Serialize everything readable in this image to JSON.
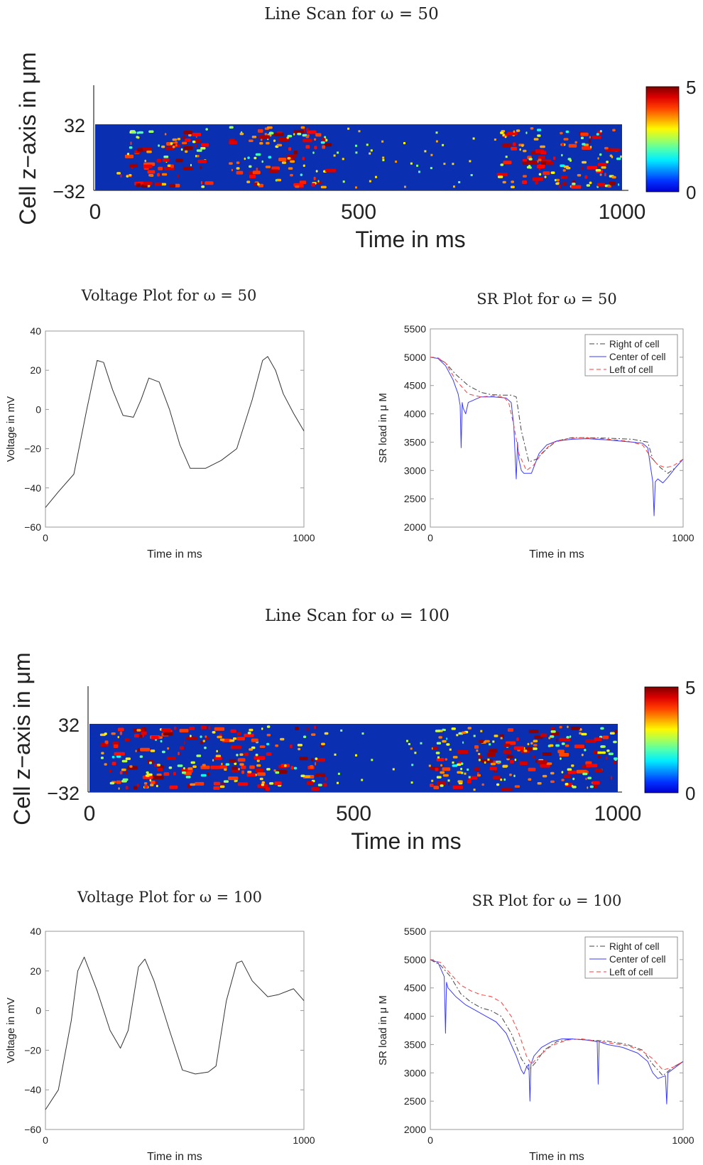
{
  "chart_data": [
    {
      "type": "heatmap",
      "title": "Line Scan for ω = 50",
      "xlabel": "Time in ms",
      "ylabel": "Cell z−axis in μm",
      "xlim": [
        0,
        1000
      ],
      "ylim": [
        -32,
        32
      ],
      "xticks": [
        "0",
        "500",
        "1000"
      ],
      "yticks": [
        "32",
        "−32"
      ],
      "colorbar": {
        "min": 0,
        "max": 5,
        "ticks": [
          "5",
          "0"
        ],
        "colormap": "jet"
      },
      "colors": {
        "background": "#0a2fb0"
      },
      "activity_bands_ms": [
        [
          40,
          210
        ],
        [
          250,
          440
        ],
        [
          760,
          1000
        ]
      ]
    },
    {
      "type": "line",
      "title": "Voltage Plot for ω = 50",
      "xlabel": "Time in ms",
      "ylabel": "Voltage in mV",
      "xlim": [
        0,
        1000
      ],
      "ylim": [
        -60,
        40
      ],
      "xticks": [
        "0",
        "1000"
      ],
      "yticks": [
        "40",
        "20",
        "0",
        "−20",
        "−40",
        "−60"
      ],
      "series": [
        {
          "color": "#333333",
          "x": [
            0,
            50,
            110,
            160,
            200,
            225,
            260,
            300,
            340,
            370,
            400,
            440,
            480,
            520,
            560,
            620,
            680,
            740,
            800,
            840,
            860,
            890,
            920,
            960,
            1000
          ],
          "y": [
            -50,
            -42,
            -33,
            0,
            25,
            24,
            10,
            -3,
            -4,
            5,
            16,
            14,
            0,
            -18,
            -30,
            -30,
            -26,
            -20,
            5,
            25,
            27,
            20,
            8,
            -2,
            -11
          ]
        }
      ]
    },
    {
      "type": "line",
      "title": "SR Plot for ω = 50",
      "xlabel": "Time in ms",
      "ylabel": "SR load in μ M",
      "xlim": [
        0,
        1000
      ],
      "ylim": [
        2000,
        5500
      ],
      "xticks": [
        "0",
        "1000"
      ],
      "yticks": [
        "5500",
        "5000",
        "4500",
        "4000",
        "3500",
        "3000",
        "2500",
        "2000"
      ],
      "legend": {
        "position": "top-right",
        "entries": [
          "Right of cell",
          "Center of cell",
          "Left of cell"
        ]
      },
      "series": [
        {
          "name": "Right of cell",
          "color": "#444444",
          "style": "dashdot",
          "x": [
            0,
            30,
            60,
            100,
            150,
            200,
            240,
            290,
            320,
            340,
            360,
            390,
            420,
            460,
            500,
            560,
            620,
            700,
            800,
            860,
            880,
            910,
            940,
            970,
            1000
          ],
          "y": [
            5000,
            4980,
            4900,
            4700,
            4500,
            4380,
            4340,
            4330,
            4330,
            4300,
            3700,
            3150,
            3200,
            3380,
            3520,
            3580,
            3580,
            3570,
            3550,
            3500,
            3200,
            3050,
            2950,
            3050,
            3200
          ]
        },
        {
          "name": "Center of cell",
          "color": "#3b3bff",
          "style": "solid",
          "x": [
            0,
            30,
            60,
            90,
            110,
            118,
            122,
            126,
            130,
            140,
            150,
            200,
            250,
            300,
            320,
            330,
            335,
            340,
            345,
            350,
            360,
            370,
            400,
            430,
            460,
            500,
            560,
            620,
            700,
            800,
            840,
            860,
            870,
            880,
            885,
            890,
            900,
            920,
            940,
            970,
            1000
          ],
          "y": [
            5000,
            4980,
            4850,
            4600,
            4350,
            4150,
            3400,
            4200,
            4100,
            4000,
            4200,
            4300,
            4300,
            4280,
            4200,
            3800,
            3300,
            2850,
            3500,
            3200,
            3000,
            2950,
            2950,
            3300,
            3450,
            3520,
            3550,
            3560,
            3540,
            3500,
            3480,
            3400,
            3100,
            2800,
            2200,
            2800,
            2850,
            2780,
            2880,
            3050,
            3200
          ]
        },
        {
          "name": "Left of cell",
          "color": "#ff3b3b",
          "style": "dashed",
          "x": [
            0,
            30,
            60,
            100,
            150,
            200,
            250,
            290,
            310,
            330,
            350,
            380,
            410,
            440,
            480,
            540,
            600,
            680,
            780,
            840,
            870,
            900,
            930,
            960,
            1000
          ],
          "y": [
            5000,
            4990,
            4900,
            4600,
            4350,
            4300,
            4320,
            4300,
            4200,
            3800,
            3300,
            3000,
            3100,
            3300,
            3480,
            3560,
            3580,
            3560,
            3520,
            3450,
            3250,
            3100,
            3050,
            3080,
            3200
          ]
        }
      ]
    },
    {
      "type": "heatmap",
      "title": "Line Scan for ω = 100",
      "xlabel": "Time in ms",
      "ylabel": "Cell z−axis in μm",
      "xlim": [
        0,
        1000
      ],
      "ylim": [
        -32,
        32
      ],
      "xticks": [
        "0",
        "500",
        "1000"
      ],
      "yticks": [
        "32",
        "−32"
      ],
      "colorbar": {
        "min": 0,
        "max": 5,
        "ticks": [
          "5",
          "0"
        ],
        "colormap": "jet"
      },
      "colors": {
        "background": "#0a2fb0"
      },
      "activity_bands_ms": [
        [
          20,
          450
        ],
        [
          640,
          1000
        ]
      ]
    },
    {
      "type": "line",
      "title": "Voltage Plot for ω = 100",
      "xlabel": "Time in ms",
      "ylabel": "Voltage in mV",
      "xlim": [
        0,
        1000
      ],
      "ylim": [
        -60,
        40
      ],
      "xticks": [
        "0",
        "1000"
      ],
      "yticks": [
        "40",
        "20",
        "0",
        "−20",
        "−40",
        "−60"
      ],
      "series": [
        {
          "color": "#333333",
          "x": [
            0,
            50,
            100,
            125,
            150,
            200,
            250,
            290,
            320,
            360,
            385,
            420,
            480,
            530,
            580,
            630,
            660,
            700,
            740,
            760,
            800,
            860,
            900,
            960,
            1000
          ],
          "y": [
            -50,
            -40,
            -5,
            20,
            27,
            10,
            -10,
            -19,
            -10,
            22,
            26,
            15,
            -10,
            -30,
            -32,
            -31,
            -28,
            5,
            24,
            25,
            15,
            7,
            8,
            11,
            5
          ]
        }
      ]
    },
    {
      "type": "line",
      "title": "SR Plot for ω = 100",
      "xlabel": "Time in ms",
      "ylabel": "SR load in μ M",
      "xlim": [
        0,
        1000
      ],
      "ylim": [
        2000,
        5500
      ],
      "xticks": [
        "0",
        "1000"
      ],
      "yticks": [
        "5500",
        "5000",
        "4500",
        "4000",
        "3500",
        "3000",
        "2500",
        "2000"
      ],
      "legend": {
        "position": "top-right",
        "entries": [
          "Right of cell",
          "Center of cell",
          "Left of cell"
        ]
      },
      "series": [
        {
          "name": "Right of cell",
          "color": "#444444",
          "style": "dashdot",
          "x": [
            0,
            40,
            80,
            120,
            160,
            200,
            240,
            280,
            320,
            360,
            390,
            420,
            450,
            500,
            560,
            620,
            700,
            780,
            840,
            880,
            920,
            960,
            1000
          ],
          "y": [
            5000,
            4900,
            4700,
            4400,
            4250,
            4150,
            4100,
            4000,
            3700,
            3250,
            3050,
            3200,
            3400,
            3550,
            3600,
            3580,
            3560,
            3500,
            3400,
            3150,
            2950,
            3100,
            3200
          ]
        },
        {
          "name": "Center of cell",
          "color": "#3b3bff",
          "style": "solid",
          "x": [
            0,
            30,
            55,
            60,
            64,
            70,
            100,
            140,
            180,
            220,
            260,
            300,
            340,
            360,
            370,
            380,
            390,
            394,
            398,
            410,
            440,
            480,
            520,
            560,
            620,
            660,
            664,
            668,
            700,
            760,
            820,
            860,
            880,
            900,
            930,
            935,
            940,
            970,
            1000
          ],
          "y": [
            5000,
            4950,
            4700,
            3700,
            4600,
            4500,
            4350,
            4200,
            4100,
            4000,
            3900,
            3700,
            3300,
            3050,
            2980,
            3100,
            3150,
            2500,
            3150,
            3300,
            3450,
            3550,
            3600,
            3600,
            3580,
            3550,
            2800,
            3550,
            3500,
            3450,
            3350,
            3200,
            3000,
            2900,
            2950,
            2450,
            3000,
            3100,
            3200
          ]
        },
        {
          "name": "Left of cell",
          "color": "#ff3b3b",
          "style": "dashed",
          "x": [
            0,
            40,
            80,
            120,
            160,
            200,
            240,
            280,
            320,
            350,
            380,
            400,
            430,
            480,
            540,
            600,
            660,
            720,
            780,
            840,
            880,
            920,
            960,
            1000
          ],
          "y": [
            5000,
            4950,
            4750,
            4550,
            4450,
            4380,
            4350,
            4250,
            4000,
            3700,
            3300,
            3150,
            3300,
            3480,
            3580,
            3600,
            3560,
            3520,
            3480,
            3380,
            3250,
            3050,
            3100,
            3200
          ]
        }
      ]
    }
  ]
}
